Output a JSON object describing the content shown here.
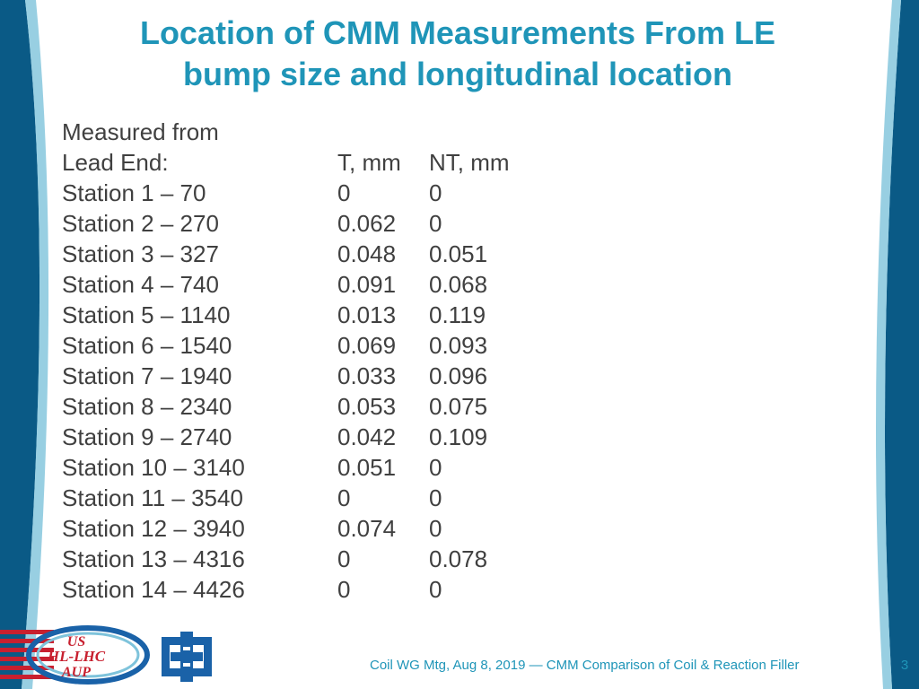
{
  "slide": {
    "title_line1": "Location of CMM Measurements From LE",
    "title_line2": "bump size and longitudinal location",
    "header_row1": [
      "Measured from",
      "",
      ""
    ],
    "header_row2": [
      "Lead End:",
      "T, mm",
      "NT, mm"
    ],
    "rows": [
      [
        "Station 1 – 70",
        "0",
        "0"
      ],
      [
        "Station 2 – 270",
        "0.062",
        "0"
      ],
      [
        "Station 3 – 327",
        "0.048",
        "0.051"
      ],
      [
        "Station 4 – 740",
        "0.091",
        "0.068"
      ],
      [
        "Station 5 – 1140",
        "0.013",
        "0.119"
      ],
      [
        "Station 6 – 1540",
        "0.069",
        "0.093"
      ],
      [
        "Station 7 – 1940",
        "0.033",
        "0.096"
      ],
      [
        "Station 8 – 2340",
        "0.053",
        "0.075"
      ],
      [
        "Station 9 – 2740",
        "0.042",
        "0.109"
      ],
      [
        "Station 10 – 3140",
        "0.051",
        "0"
      ],
      [
        "Station 11 – 3540",
        "0",
        "0"
      ],
      [
        "Station 12 – 3940",
        "0.074",
        "0"
      ],
      [
        "Station 13 – 4316",
        "0",
        "0.078"
      ],
      [
        "Station 14 – 4426",
        "0",
        "0"
      ]
    ]
  },
  "logos": {
    "us_line1": "US",
    "us_line2": "HL-LHC",
    "us_line3": "AUP"
  },
  "footer": {
    "text": "Coil WG Mtg, Aug 8, 2019 — CMM Comparison of Coil & Reaction Filler",
    "page": "3"
  },
  "colors": {
    "accent": "#1f95b8",
    "text": "#404040",
    "deco_dark": "#0a5a86",
    "deco_light": "#7ec3db",
    "fermilab_blue": "#1a62a8",
    "us_red": "#c8202f"
  }
}
